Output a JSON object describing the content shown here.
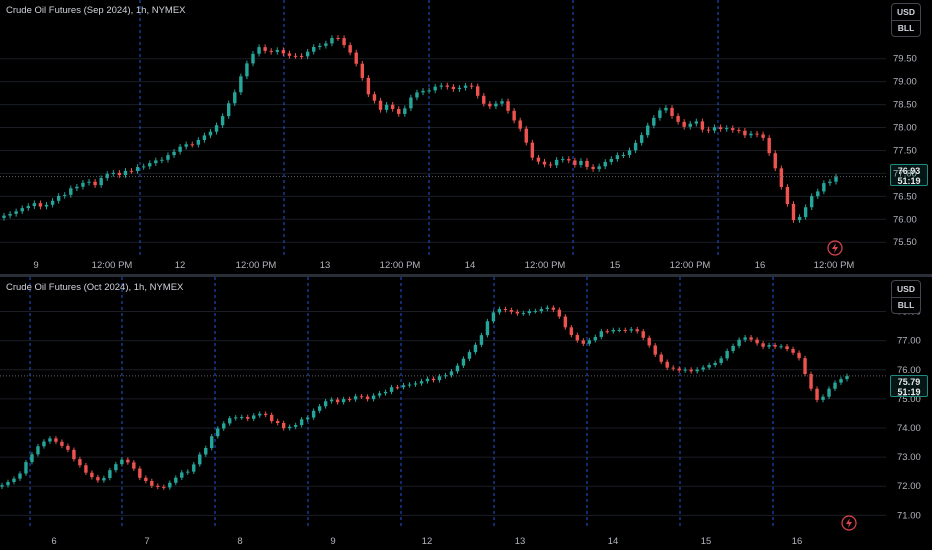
{
  "colors": {
    "background": "#000000",
    "up": "#26a69a",
    "down": "#ef5350",
    "separator": "#2962ff",
    "axis_text": "#b2b5be",
    "grid": "#1a1d24",
    "price_line": "#5d606b"
  },
  "icons": {
    "bolt": "lightning-icon"
  },
  "panes": [
    {
      "title": "Crude Oil Futures (Sep 2024), 1h, NYMEX",
      "currency": "USD",
      "unit": "BLL",
      "last_price": "76.93",
      "countdown": "51:19",
      "x_labels": [
        "9",
        "12:00 PM",
        "12",
        "12:00 PM",
        "13",
        "12:00 PM",
        "14",
        "12:00 PM",
        "15",
        "12:00 PM",
        "16",
        "12:00 PM"
      ],
      "y_labels": [
        "79.50",
        "79.00",
        "78.50",
        "78.00",
        "77.50",
        "77.00",
        "76.50",
        "76.00",
        "75.50"
      ],
      "chart_data": {
        "type": "candlestick",
        "interval": "1h",
        "y_range": [
          75.2,
          80.3
        ],
        "close_path": [
          76.08,
          76.15,
          76.3,
          76.35,
          76.28,
          76.42,
          76.55,
          76.7,
          76.8,
          76.75,
          76.95,
          76.98,
          77.02,
          77.1,
          77.18,
          77.25,
          77.35,
          77.5,
          77.62,
          77.7,
          77.82,
          78.05,
          78.45,
          78.9,
          79.45,
          79.8,
          79.65,
          79.7,
          79.6,
          79.55,
          79.65,
          79.78,
          79.9,
          79.95,
          79.7,
          79.3,
          78.7,
          78.4,
          78.5,
          78.3,
          78.6,
          78.8,
          78.85,
          78.9,
          78.88,
          78.85,
          78.9,
          78.6,
          78.4,
          78.6,
          78.2,
          77.9,
          77.4,
          77.15,
          77.2,
          77.35,
          77.2,
          77.25,
          77.1,
          77.2,
          77.35,
          77.4,
          77.6,
          77.9,
          78.2,
          78.45,
          78.25,
          78.0,
          78.15,
          77.95,
          77.98,
          78.0,
          77.95,
          77.85,
          77.9,
          77.75,
          77.1,
          76.4,
          75.9,
          76.3,
          76.6,
          76.8,
          76.93
        ]
      },
      "vline_count": 5
    },
    {
      "title": "Crude Oil Futures (Oct 2024), 1h, NYMEX",
      "currency": "USD",
      "unit": "BLL",
      "last_price": "75.79",
      "countdown": "51:19",
      "x_labels": [
        "6",
        "7",
        "8",
        "9",
        "12",
        "13",
        "14",
        "15",
        "16"
      ],
      "y_labels": [
        "78.00",
        "77.00",
        "76.00",
        "75.00",
        "74.00",
        "73.00",
        "72.00",
        "71.00"
      ],
      "chart_data": {
        "type": "candlestick",
        "interval": "1h",
        "y_range": [
          70.6,
          78.5
        ],
        "close_path": [
          72.0,
          72.2,
          72.5,
          73.0,
          73.4,
          73.6,
          73.5,
          73.2,
          72.8,
          72.5,
          72.1,
          72.3,
          72.7,
          72.9,
          72.6,
          72.2,
          72.0,
          71.9,
          72.1,
          72.4,
          72.6,
          73.0,
          73.5,
          74.0,
          74.3,
          74.4,
          74.35,
          74.4,
          74.5,
          74.2,
          74.0,
          74.1,
          74.3,
          74.5,
          74.8,
          75.0,
          74.9,
          75.0,
          75.05,
          75.0,
          75.2,
          75.3,
          75.4,
          75.5,
          75.55,
          75.6,
          75.7,
          75.8,
          76.0,
          76.3,
          76.7,
          77.2,
          77.9,
          78.1,
          78.0,
          77.9,
          77.95,
          78.05,
          78.15,
          78.0,
          77.5,
          77.0,
          76.9,
          77.1,
          77.3,
          77.35,
          77.3,
          77.4,
          77.2,
          76.8,
          76.3,
          76.1,
          76.0,
          75.95,
          76.0,
          76.1,
          76.3,
          76.5,
          76.9,
          77.2,
          77.0,
          76.85,
          76.8,
          76.75,
          76.7,
          76.3,
          75.4,
          74.9,
          75.3,
          75.6,
          75.79
        ]
      },
      "vline_count": 9
    }
  ]
}
